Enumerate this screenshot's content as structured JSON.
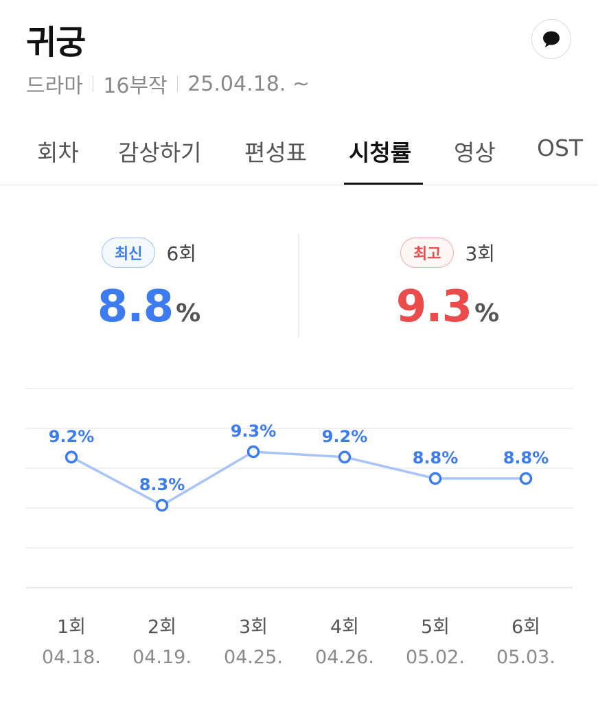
{
  "header": {
    "title": "귀궁",
    "meta": {
      "genre": "드라마",
      "episodes": "16부작",
      "date": "25.04.18. ~"
    },
    "comment_icon": "speech-bubble-icon"
  },
  "tabs": [
    {
      "label": "회차",
      "active": false
    },
    {
      "label": "감상하기",
      "active": false
    },
    {
      "label": "편성표",
      "active": false
    },
    {
      "label": "시청률",
      "active": true
    },
    {
      "label": "영상",
      "active": false
    },
    {
      "label": "OST",
      "active": false
    }
  ],
  "summary": {
    "latest": {
      "badge": "최신",
      "episode": "6회",
      "value": "8.8",
      "unit": "%"
    },
    "highest": {
      "badge": "최고",
      "episode": "3회",
      "value": "9.3",
      "unit": "%"
    }
  },
  "colors": {
    "accent_blue": "#3d7cf0",
    "line_blue": "#a9c4f7",
    "accent_red": "#ea4b4b",
    "grid": "#ececec"
  },
  "chart_data": {
    "type": "line",
    "x": [
      "1회",
      "2회",
      "3회",
      "4회",
      "5회",
      "6회"
    ],
    "x_sublabels": [
      "04.18.",
      "04.19.",
      "04.25.",
      "04.26.",
      "05.02.",
      "05.03."
    ],
    "series": [
      {
        "values": [
          9.2,
          8.3,
          9.3,
          9.2,
          8.8,
          8.8
        ],
        "data_labels": [
          "9.2%",
          "8.3%",
          "9.3%",
          "9.2%",
          "8.8%",
          "8.8%"
        ]
      }
    ],
    "grid": true
  }
}
